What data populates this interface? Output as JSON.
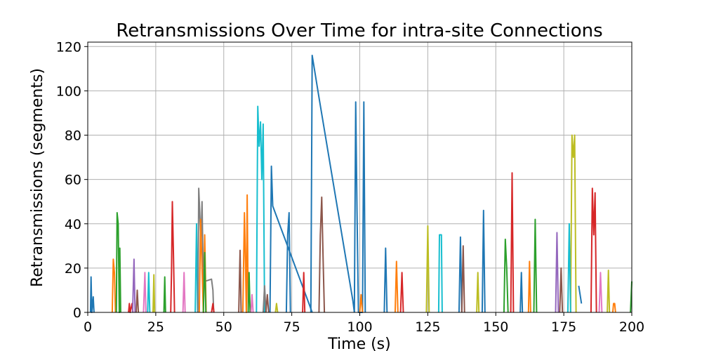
{
  "chart_data": {
    "type": "line",
    "title": "Retransmissions Over Time for intra-site Connections",
    "xlabel": "Time (s)",
    "ylabel": "Retransmissions (segments)",
    "xlim": [
      0,
      200
    ],
    "ylim": [
      0,
      122
    ],
    "xticks": [
      0,
      25,
      50,
      75,
      100,
      125,
      150,
      175,
      200
    ],
    "yticks": [
      0,
      20,
      40,
      60,
      80,
      100,
      120
    ],
    "grid": true,
    "legend": "none",
    "series": [
      {
        "color": "#1f77b4",
        "points": [
          [
            1,
            0
          ],
          [
            1.2,
            16
          ],
          [
            1.5,
            0
          ],
          [
            2,
            7
          ],
          [
            2.3,
            0
          ]
        ]
      },
      {
        "color": "#ff7f0e",
        "points": [
          [
            9,
            0
          ],
          [
            9.4,
            24
          ],
          [
            9.8,
            18
          ],
          [
            10.2,
            0
          ]
        ]
      },
      {
        "color": "#2ca02c",
        "points": [
          [
            10.5,
            0
          ],
          [
            10.8,
            45
          ],
          [
            11.2,
            40
          ],
          [
            11.6,
            0
          ],
          [
            11.8,
            29
          ],
          [
            12.1,
            0
          ]
        ]
      },
      {
        "color": "#d62728",
        "points": [
          [
            15,
            0
          ],
          [
            15.3,
            4
          ],
          [
            15.6,
            0
          ],
          [
            16.3,
            4
          ],
          [
            16.6,
            0
          ]
        ]
      },
      {
        "color": "#9467bd",
        "points": [
          [
            16.5,
            0
          ],
          [
            17,
            24
          ],
          [
            17.4,
            0
          ]
        ]
      },
      {
        "color": "#8c564b",
        "points": [
          [
            17.8,
            0
          ],
          [
            18.2,
            10
          ],
          [
            18.6,
            0
          ]
        ]
      },
      {
        "color": "#e377c2",
        "points": [
          [
            20.5,
            0
          ],
          [
            21,
            18
          ],
          [
            21.4,
            0
          ]
        ]
      },
      {
        "color": "#17becf",
        "points": [
          [
            22,
            0
          ],
          [
            22.4,
            18
          ],
          [
            22.8,
            0
          ]
        ]
      },
      {
        "color": "#bcbd22",
        "points": [
          [
            24,
            0
          ],
          [
            24.3,
            17
          ],
          [
            24.6,
            0
          ]
        ]
      },
      {
        "color": "#2ca02c",
        "points": [
          [
            28,
            0
          ],
          [
            28.3,
            16
          ],
          [
            28.6,
            0
          ]
        ]
      },
      {
        "color": "#d62728",
        "points": [
          [
            30.5,
            0
          ],
          [
            30.8,
            18
          ],
          [
            31.1,
            50
          ],
          [
            31.5,
            26
          ],
          [
            31.9,
            0
          ]
        ]
      },
      {
        "color": "#e377c2",
        "points": [
          [
            35,
            0
          ],
          [
            35.4,
            18
          ],
          [
            35.8,
            0
          ]
        ]
      },
      {
        "color": "#17becf",
        "points": [
          [
            39.5,
            0
          ],
          [
            40,
            40
          ],
          [
            40.4,
            0
          ]
        ]
      },
      {
        "color": "#7f7f7f",
        "points": [
          [
            40.5,
            0
          ],
          [
            40.8,
            56
          ],
          [
            41.2,
            45
          ],
          [
            41.6,
            30
          ],
          [
            42,
            50
          ],
          [
            42.5,
            12
          ],
          [
            43,
            14
          ],
          [
            45.5,
            15
          ],
          [
            46,
            10
          ],
          [
            46.3,
            0
          ]
        ]
      },
      {
        "color": "#ff7f0e",
        "points": [
          [
            41,
            0
          ],
          [
            41.5,
            42
          ],
          [
            42,
            20
          ],
          [
            42.5,
            0
          ],
          [
            43,
            35
          ],
          [
            43.5,
            0
          ]
        ]
      },
      {
        "color": "#2ca02c",
        "points": [
          [
            42.5,
            0
          ],
          [
            43,
            27
          ],
          [
            43.4,
            0
          ]
        ]
      },
      {
        "color": "#d62728",
        "points": [
          [
            45.5,
            0
          ],
          [
            46,
            4
          ],
          [
            46.4,
            0
          ]
        ]
      },
      {
        "color": "#8c564b",
        "points": [
          [
            55.5,
            0
          ],
          [
            56,
            28
          ],
          [
            56.4,
            0
          ]
        ]
      },
      {
        "color": "#ff7f0e",
        "points": [
          [
            57,
            0
          ],
          [
            57.6,
            45
          ],
          [
            58,
            20
          ],
          [
            58.3,
            0
          ],
          [
            58.6,
            53
          ],
          [
            59,
            0
          ]
        ]
      },
      {
        "color": "#2ca02c",
        "points": [
          [
            59,
            0
          ],
          [
            59.3,
            18
          ],
          [
            59.7,
            0
          ]
        ]
      },
      {
        "color": "#e377c2",
        "points": [
          [
            60,
            0
          ],
          [
            60.4,
            8
          ],
          [
            60.8,
            0
          ]
        ]
      },
      {
        "color": "#17becf",
        "points": [
          [
            62,
            0
          ],
          [
            62.5,
            93
          ],
          [
            63,
            75
          ],
          [
            63.5,
            86
          ],
          [
            64,
            60
          ],
          [
            64.5,
            85
          ],
          [
            65,
            0
          ]
        ]
      },
      {
        "color": "#7f7f7f",
        "points": [
          [
            64.5,
            0
          ],
          [
            65,
            12
          ],
          [
            65.5,
            0
          ]
        ]
      },
      {
        "color": "#8c564b",
        "points": [
          [
            65.5,
            0
          ],
          [
            66,
            8
          ],
          [
            66.5,
            0
          ]
        ]
      },
      {
        "color": "#1f77b4",
        "points": [
          [
            67,
            0
          ],
          [
            67.5,
            66
          ],
          [
            68,
            48
          ],
          [
            81,
            5
          ],
          [
            82.5,
            0
          ]
        ]
      },
      {
        "color": "#1f77b4",
        "points": [
          [
            82,
            0
          ],
          [
            82.5,
            116
          ],
          [
            85,
            97
          ],
          [
            97.5,
            5
          ],
          [
            98,
            0
          ]
        ]
      },
      {
        "color": "#bcbd22",
        "points": [
          [
            69,
            0
          ],
          [
            69.4,
            4
          ],
          [
            69.8,
            0
          ]
        ]
      },
      {
        "color": "#1f77b4",
        "points": [
          [
            73,
            0
          ],
          [
            73.5,
            35
          ],
          [
            74,
            45
          ],
          [
            74.5,
            0
          ]
        ]
      },
      {
        "color": "#d62728",
        "points": [
          [
            79,
            0
          ],
          [
            79.4,
            18
          ],
          [
            79.8,
            0
          ]
        ]
      },
      {
        "color": "#8c564b",
        "points": [
          [
            85,
            0
          ],
          [
            85.5,
            35
          ],
          [
            86,
            52
          ],
          [
            86.5,
            25
          ],
          [
            87,
            0
          ]
        ]
      },
      {
        "color": "#1f77b4",
        "points": [
          [
            98,
            0
          ],
          [
            98.5,
            95
          ],
          [
            99,
            45
          ],
          [
            99.5,
            0
          ],
          [
            101,
            0
          ],
          [
            101.5,
            95
          ],
          [
            102,
            0
          ]
        ]
      },
      {
        "color": "#ff7f0e",
        "points": [
          [
            100,
            0
          ],
          [
            100.5,
            8
          ],
          [
            101,
            0
          ]
        ]
      },
      {
        "color": "#1f77b4",
        "points": [
          [
            109,
            0
          ],
          [
            109.5,
            29
          ],
          [
            110,
            0
          ]
        ]
      },
      {
        "color": "#ff7f0e",
        "points": [
          [
            113,
            0
          ],
          [
            113.5,
            23
          ],
          [
            114,
            0
          ]
        ]
      },
      {
        "color": "#d62728",
        "points": [
          [
            115,
            0
          ],
          [
            115.5,
            18
          ],
          [
            116,
            0
          ]
        ]
      },
      {
        "color": "#bcbd22",
        "points": [
          [
            124.5,
            0
          ],
          [
            125,
            39
          ],
          [
            125.5,
            0
          ]
        ]
      },
      {
        "color": "#17becf",
        "points": [
          [
            129,
            0
          ],
          [
            129.3,
            35
          ],
          [
            130,
            35
          ],
          [
            130.3,
            0
          ]
        ]
      },
      {
        "color": "#1f77b4",
        "points": [
          [
            136.5,
            0
          ],
          [
            137,
            34
          ],
          [
            137.5,
            0
          ]
        ]
      },
      {
        "color": "#8c564b",
        "points": [
          [
            137.5,
            0
          ],
          [
            138,
            30
          ],
          [
            138.5,
            0
          ]
        ]
      },
      {
        "color": "#bcbd22",
        "points": [
          [
            143,
            0
          ],
          [
            143.4,
            18
          ],
          [
            143.8,
            0
          ]
        ]
      },
      {
        "color": "#1f77b4",
        "points": [
          [
            145,
            0
          ],
          [
            145.5,
            46
          ],
          [
            146,
            0
          ]
        ]
      },
      {
        "color": "#2ca02c",
        "points": [
          [
            153,
            0
          ],
          [
            153.5,
            33
          ],
          [
            154,
            20
          ],
          [
            154.5,
            0
          ]
        ]
      },
      {
        "color": "#d62728",
        "points": [
          [
            155.5,
            0
          ],
          [
            156,
            63
          ],
          [
            156.5,
            0
          ]
        ]
      },
      {
        "color": "#1f77b4",
        "points": [
          [
            159,
            0
          ],
          [
            159.4,
            18
          ],
          [
            159.8,
            0
          ]
        ]
      },
      {
        "color": "#ff7f0e",
        "points": [
          [
            162,
            0
          ],
          [
            162.4,
            23
          ],
          [
            162.8,
            0
          ]
        ]
      },
      {
        "color": "#2ca02c",
        "points": [
          [
            164,
            0
          ],
          [
            164.5,
            42
          ],
          [
            165,
            0
          ]
        ]
      },
      {
        "color": "#9467bd",
        "points": [
          [
            172,
            0
          ],
          [
            172.5,
            36
          ],
          [
            173,
            0
          ]
        ]
      },
      {
        "color": "#8c564b",
        "points": [
          [
            173.5,
            0
          ],
          [
            174,
            20
          ],
          [
            174.5,
            0
          ]
        ]
      },
      {
        "color": "#bcbd22",
        "points": [
          [
            177.5,
            0
          ],
          [
            178,
            80
          ],
          [
            178.5,
            70
          ],
          [
            179,
            80
          ],
          [
            179.5,
            0
          ]
        ]
      },
      {
        "color": "#17becf",
        "points": [
          [
            176.5,
            0
          ],
          [
            177,
            40
          ],
          [
            177.5,
            0
          ]
        ]
      },
      {
        "color": "#1f77b4",
        "points": [
          [
            180.5,
            12
          ],
          [
            181.5,
            4
          ]
        ]
      },
      {
        "color": "#d62728",
        "points": [
          [
            185,
            0
          ],
          [
            185.5,
            56
          ],
          [
            186,
            35
          ],
          [
            186.5,
            54
          ],
          [
            187,
            0
          ]
        ]
      },
      {
        "color": "#e377c2",
        "points": [
          [
            188,
            0
          ],
          [
            188.5,
            18
          ],
          [
            189,
            0
          ]
        ]
      },
      {
        "color": "#bcbd22",
        "points": [
          [
            191,
            0
          ],
          [
            191.4,
            19
          ],
          [
            191.8,
            0
          ]
        ]
      },
      {
        "color": "#ff7f0e",
        "points": [
          [
            193,
            0
          ],
          [
            193.3,
            4
          ],
          [
            193.7,
            4
          ],
          [
            194,
            0
          ]
        ]
      },
      {
        "color": "#2ca02c",
        "points": [
          [
            199.5,
            0
          ],
          [
            200,
            14
          ]
        ]
      }
    ]
  }
}
